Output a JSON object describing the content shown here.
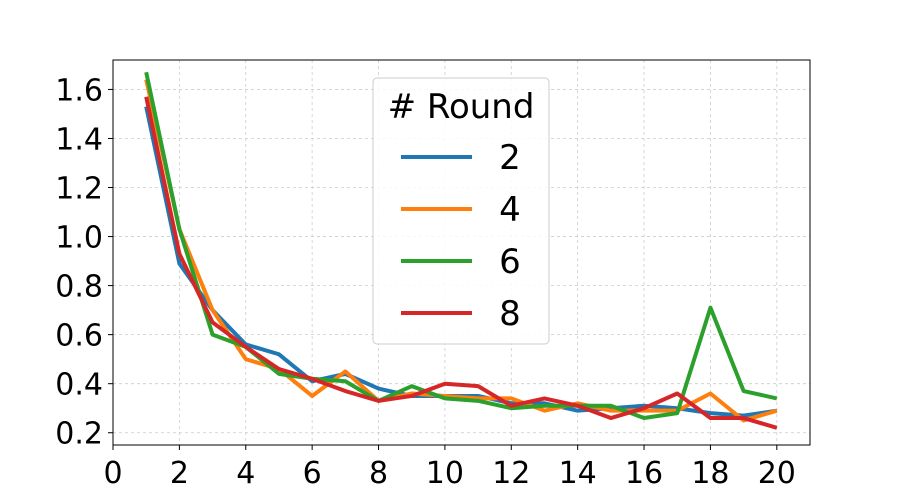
{
  "chart_data": {
    "type": "line",
    "x": [
      1,
      2,
      3,
      4,
      5,
      6,
      7,
      8,
      9,
      10,
      11,
      12,
      13,
      14,
      15,
      16,
      17,
      18,
      19,
      20
    ],
    "series": [
      {
        "name": "2",
        "color": "#1f77b4",
        "values": [
          1.53,
          0.89,
          0.7,
          0.56,
          0.52,
          0.41,
          0.44,
          0.38,
          0.35,
          0.35,
          0.35,
          0.32,
          0.32,
          0.29,
          0.3,
          0.31,
          0.3,
          0.28,
          0.27,
          0.29
        ]
      },
      {
        "name": "4",
        "color": "#ff7f0e",
        "values": [
          1.64,
          1.03,
          0.7,
          0.5,
          0.46,
          0.35,
          0.45,
          0.33,
          0.36,
          0.35,
          0.34,
          0.34,
          0.29,
          0.32,
          0.29,
          0.29,
          0.29,
          0.36,
          0.25,
          0.29
        ]
      },
      {
        "name": "6",
        "color": "#2ca02c",
        "values": [
          1.67,
          1.03,
          0.6,
          0.55,
          0.44,
          0.42,
          0.41,
          0.33,
          0.39,
          0.34,
          0.33,
          0.3,
          0.31,
          0.31,
          0.31,
          0.26,
          0.28,
          0.71,
          0.37,
          0.34
        ]
      },
      {
        "name": "8",
        "color": "#d62728",
        "values": [
          1.57,
          0.93,
          0.65,
          0.55,
          0.46,
          0.42,
          0.37,
          0.33,
          0.35,
          0.4,
          0.39,
          0.31,
          0.34,
          0.31,
          0.26,
          0.3,
          0.36,
          0.26,
          0.26,
          0.22
        ]
      }
    ],
    "xlim": [
      0,
      21
    ],
    "ylim": [
      0.15,
      1.72
    ],
    "xticks": [
      0,
      2,
      4,
      6,
      8,
      10,
      12,
      14,
      16,
      18,
      20
    ],
    "yticks": [
      0.2,
      0.4,
      0.6,
      0.8,
      1.0,
      1.2,
      1.4,
      1.6
    ],
    "ytick_labels": [
      "0.2",
      "0.4",
      "0.6",
      "0.8",
      "1.0",
      "1.2",
      "1.4",
      "1.6"
    ],
    "grid": true,
    "legend": {
      "title": "# Round",
      "placement": "top-center"
    }
  }
}
